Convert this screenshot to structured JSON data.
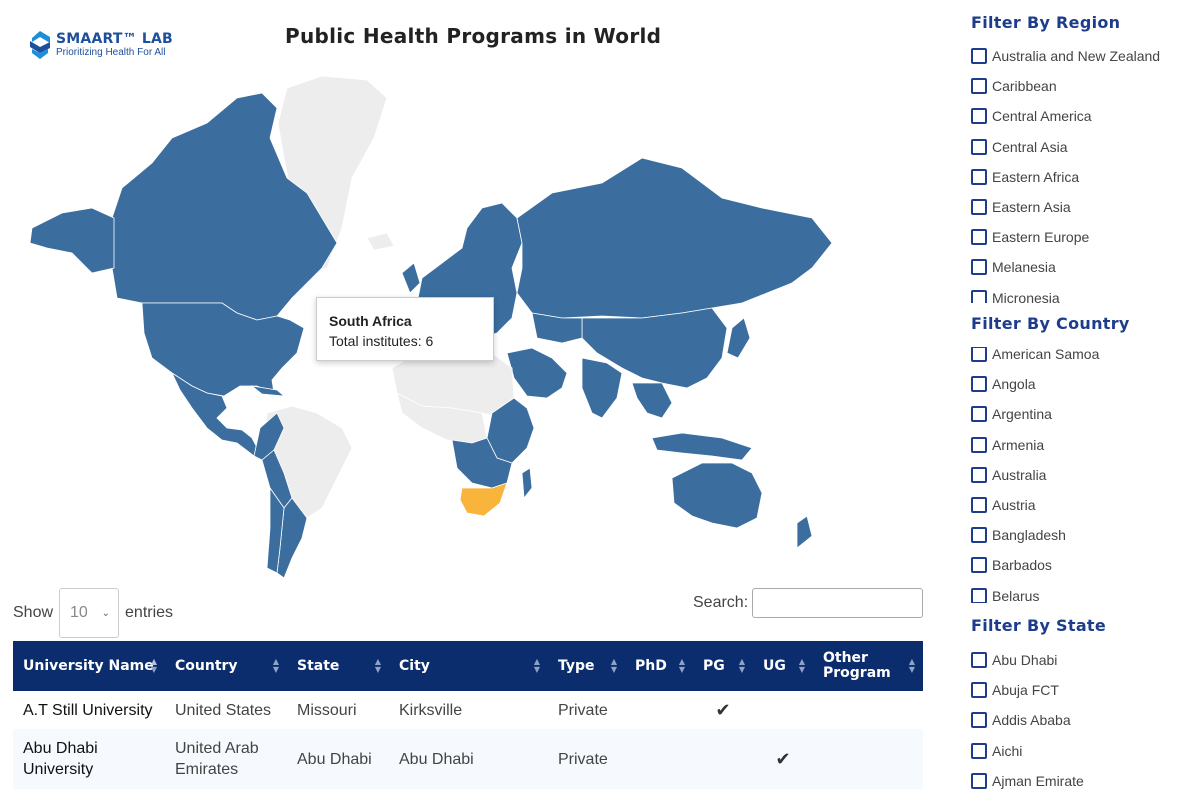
{
  "logo": {
    "title": "SMAART™ LAB",
    "subtitle": "Prioritizing Health For All"
  },
  "page_title": "Public Health Programs in World",
  "colors": {
    "program_country": "#3b6e9e",
    "no_program": "#ededed",
    "selected": "#f9b43b",
    "header_bg": "#0b2d6e",
    "accent": "#1d3d8c"
  },
  "tooltip": {
    "name": "South Africa",
    "detail": "Total institutes: 6"
  },
  "table_controls": {
    "show_label": "Show",
    "entries_value": "10",
    "entries_label": "entries",
    "search_label": "Search:",
    "search_value": ""
  },
  "table": {
    "columns": [
      "University Name",
      "Country",
      "State",
      "City",
      "Type",
      "PhD",
      "PG",
      "UG",
      "Other Program"
    ],
    "rows": [
      {
        "university": "A.T Still University",
        "country": "United States",
        "state": "Missouri",
        "city": "Kirksville",
        "type": "Private",
        "phd": "",
        "pg": "✔",
        "ug": "",
        "other": ""
      },
      {
        "university": "Abu Dhabi University",
        "country": "United Arab Emirates",
        "state": "Abu Dhabi",
        "city": "Abu Dhabi",
        "type": "Private",
        "phd": "",
        "pg": "",
        "ug": "✔",
        "other": ""
      }
    ]
  },
  "filters": {
    "region": {
      "heading": "Filter By Region",
      "items": [
        "Australia and New Zealand",
        "Caribbean",
        "Central America",
        "Central Asia",
        "Eastern Africa",
        "Eastern Asia",
        "Eastern Europe",
        "Melanesia",
        "Micronesia"
      ]
    },
    "country": {
      "heading": "Filter By Country",
      "items": [
        "American Samoa",
        "Angola",
        "Argentina",
        "Armenia",
        "Australia",
        "Austria",
        "Bangladesh",
        "Barbados",
        "Belarus"
      ]
    },
    "state": {
      "heading": "Filter By State",
      "items": [
        "Abu Dhabi",
        "Abuja FCT",
        "Addis Ababa",
        "Aichi",
        "Ajman Emirate"
      ]
    }
  }
}
